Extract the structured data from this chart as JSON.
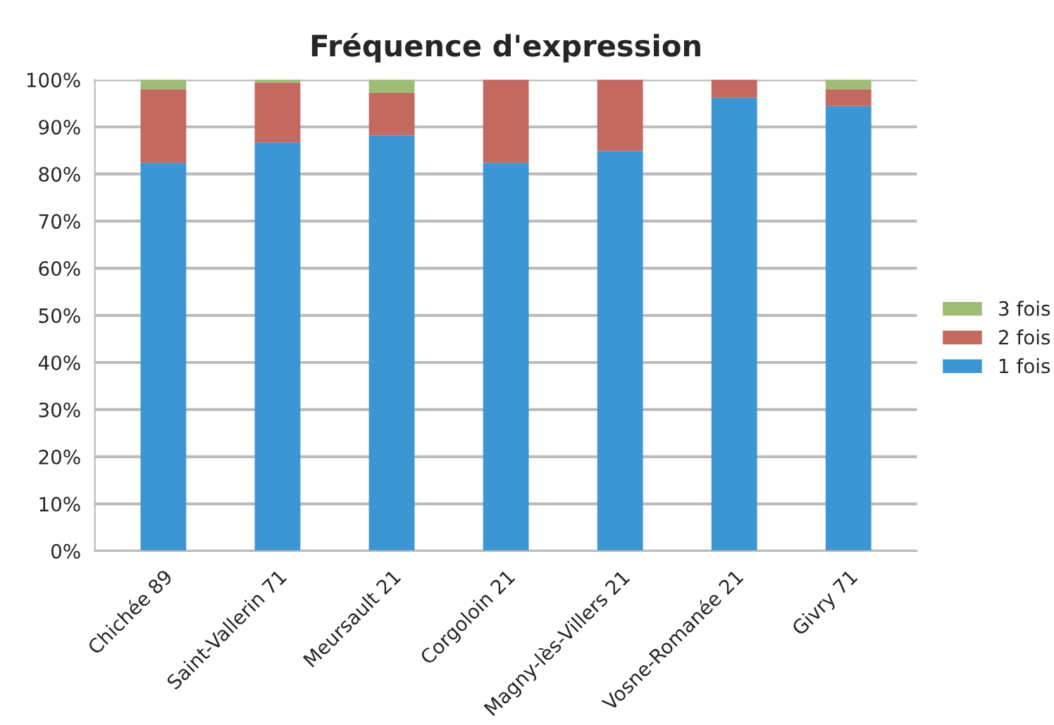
{
  "chart_data": {
    "type": "bar",
    "stacked": true,
    "title": "Fréquence d'expression",
    "categories": [
      "Chichée 89",
      "Saint-Vallerin 71",
      "Meursault 21",
      "Corgoloin 21",
      "Magny-lès-Villers 21",
      "Vosne-Romanée 21",
      "Givry 71"
    ],
    "series": [
      {
        "name": "1 fois",
        "color": "#3d96d4",
        "values": [
          82.4,
          86.7,
          88.2,
          82.4,
          84.9,
          96.2,
          94.4
        ]
      },
      {
        "name": "2 fois",
        "color": "#c3695f",
        "values": [
          15.6,
          12.7,
          9.0,
          17.6,
          15.1,
          3.8,
          3.6
        ]
      },
      {
        "name": "3 fois",
        "color": "#9dbd74",
        "values": [
          2.0,
          0.6,
          2.8,
          null,
          null,
          null,
          2.0
        ]
      }
    ],
    "ylim": [
      0,
      100
    ],
    "yticks": [
      {
        "value": 0,
        "label": "0%"
      },
      {
        "value": 10,
        "label": "10%"
      },
      {
        "value": 20,
        "label": "20%"
      },
      {
        "value": 30,
        "label": "30%"
      },
      {
        "value": 40,
        "label": "40%"
      },
      {
        "value": 50,
        "label": "50%"
      },
      {
        "value": 60,
        "label": "60%"
      },
      {
        "value": 70,
        "label": "70%"
      },
      {
        "value": 80,
        "label": "80%"
      },
      {
        "value": 90,
        "label": "90%"
      },
      {
        "value": 100,
        "label": "100%"
      }
    ],
    "grid": "y",
    "legend": "right"
  }
}
